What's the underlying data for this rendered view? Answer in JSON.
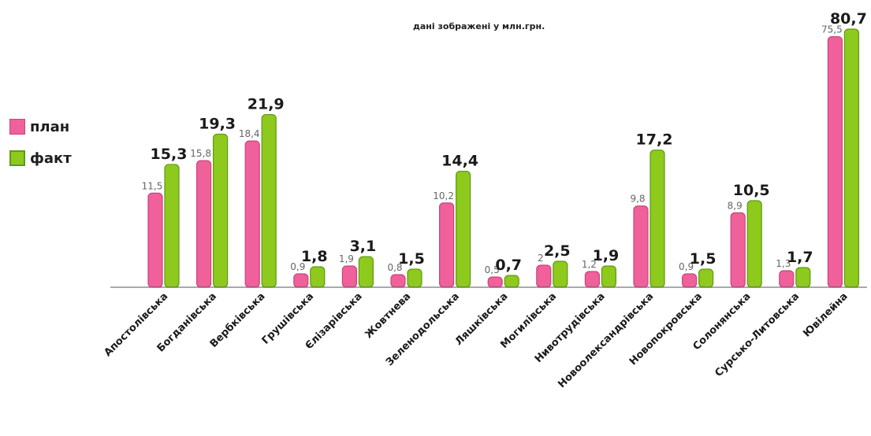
{
  "colors": {
    "plan": "#f0609a",
    "plan_border": "#c8457a",
    "fact": "#8ec91e",
    "fact_border": "#5f9a12",
    "axis": "#555555"
  },
  "chart_data": {
    "type": "bar",
    "title": "",
    "subtitle": "дані зображені у млн.грн.",
    "categories": [
      "Апостолівська",
      "Богданівська",
      "Вербківська",
      "Грушівська",
      "Єлізарівська",
      "Жовтнева",
      "Зеленодольська",
      "Ляшківська",
      "Могилівська",
      "Нивотрудівська",
      "Новоолександрівська",
      "Новопокровська",
      "Солонянська",
      "Сурсько-Литовська",
      "Ювілейна"
    ],
    "series": [
      {
        "name": "план",
        "values": [
          11.5,
          15.8,
          18.4,
          0.9,
          1.9,
          0.8,
          10.2,
          0.5,
          2,
          1.2,
          9.8,
          0.9,
          8.9,
          1.3,
          75.5
        ],
        "labels": [
          "11,5",
          "15,8",
          "18,4",
          "0,9",
          "1,9",
          "0,8",
          "10,2",
          "0,5",
          "2",
          "1,2",
          "9,8",
          "0,9",
          "8,9",
          "1,3",
          "75,5"
        ]
      },
      {
        "name": "факт",
        "values": [
          15.3,
          19.3,
          21.9,
          1.8,
          3.1,
          1.5,
          14.4,
          0.7,
          2.5,
          1.9,
          17.2,
          1.5,
          10.5,
          1.7,
          80.7
        ],
        "labels": [
          "15,3",
          "19,3",
          "21,9",
          "1,8",
          "3,1",
          "1,5",
          "14,4",
          "0,7",
          "2,5",
          "1,9",
          "17,2",
          "1,5",
          "10,5",
          "1,7",
          "80,7"
        ]
      }
    ],
    "legend_position": "left",
    "grid": false,
    "scale": "nonlinear (bars visually not proportional)"
  }
}
